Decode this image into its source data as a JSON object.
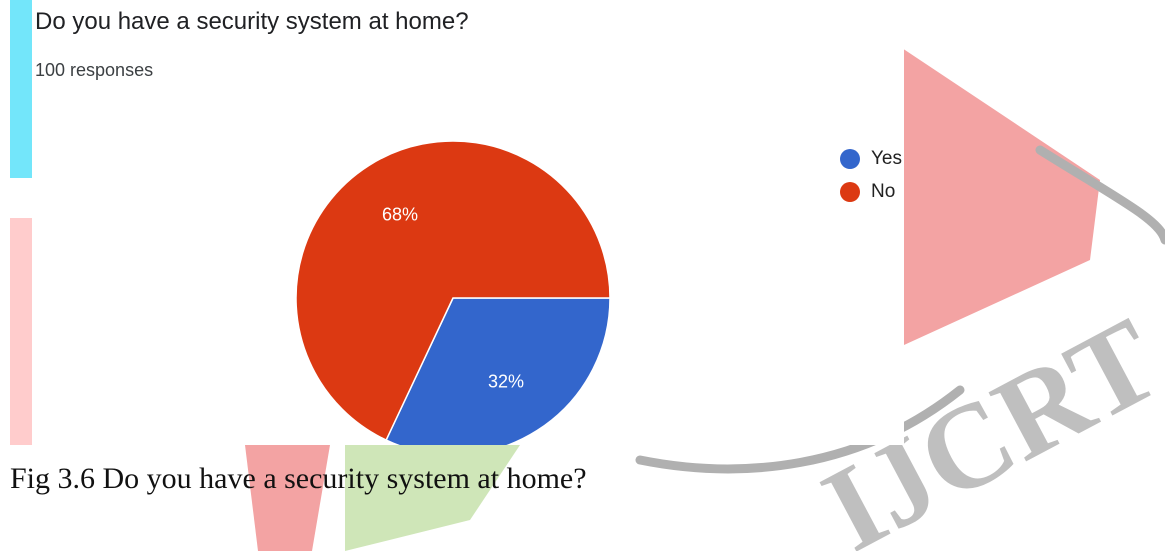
{
  "chart_data": {
    "type": "pie",
    "title": "Do you have a security system at home?",
    "subtitle": "100 responses",
    "categories": [
      "Yes",
      "No"
    ],
    "values": [
      32,
      68
    ],
    "value_labels": [
      "32%",
      "68%"
    ],
    "colors": [
      "#3366cc",
      "#dc3912"
    ],
    "legend_position": "right"
  },
  "caption": "Fig 3.6 Do you have a security system at home?",
  "watermark": {
    "text": "IJCRT",
    "colors": [
      "#73e6fa",
      "#ffb8b0",
      "#ffcccc",
      "#f3a3a3",
      "#cfe6b8",
      "#b0b0b0"
    ]
  }
}
